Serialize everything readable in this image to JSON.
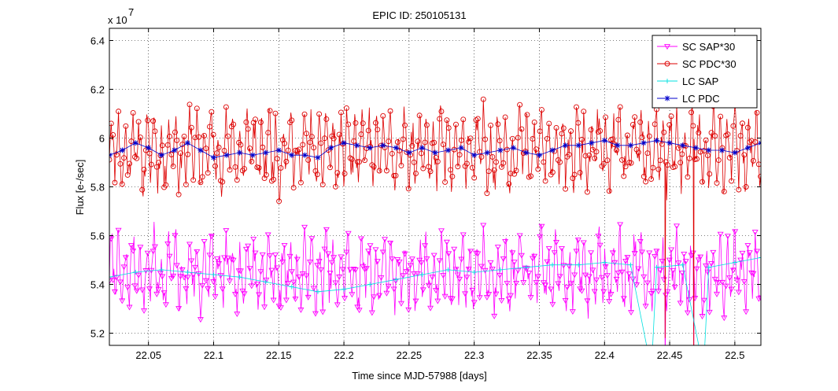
{
  "chart_data": {
    "type": "line",
    "title": "EPIC ID: 250105131",
    "xlabel": "Time since MJD-57988 [days]",
    "ylabel": "Flux [e-/sec]",
    "y_multiplier": "x 10",
    "y_exponent": "7",
    "xlim": [
      22.02,
      22.52
    ],
    "ylim": [
      5.15,
      6.45
    ],
    "x_ticks": [
      22.05,
      22.1,
      22.15,
      22.2,
      22.25,
      22.3,
      22.35,
      22.4,
      22.45,
      22.5
    ],
    "x_tick_labels": [
      "22.05",
      "22.1",
      "22.15",
      "22.2",
      "22.25",
      "22.3",
      "22.35",
      "22.4",
      "22.45",
      "22.5"
    ],
    "y_ticks": [
      5.2,
      5.4,
      5.6,
      5.8,
      6.0,
      6.2,
      6.4
    ],
    "y_tick_labels": [
      "5.2",
      "5.4",
      "5.6",
      "5.8",
      "6",
      "6.2",
      "6.4"
    ],
    "grid": true,
    "legend_position": "top-right",
    "legend_entries": [
      "SC SAP*30",
      "SC PDC*30",
      "LC SAP",
      "LC PDC"
    ],
    "colors": {
      "sc_sap": "#ff00ff",
      "sc_pdc": "#dd0000",
      "lc_sap": "#00e0e0",
      "lc_pdc": "#0000cc"
    },
    "series": [
      {
        "name": "SC SAP*30",
        "marker": "triangle-down",
        "generator": {
          "type": "oscillation",
          "x_start": 22.02,
          "x_end": 22.52,
          "x_step": 0.0007,
          "mean": 5.45,
          "amplitude": 0.1,
          "period": 0.0055,
          "noise": 0.07,
          "seed": 7,
          "dropouts": [
            {
              "x": 22.4465,
              "y": 5.05
            },
            {
              "x": 22.4685,
              "y": 5.05
            }
          ]
        }
      },
      {
        "name": "SC PDC*30",
        "marker": "circle",
        "generator": {
          "type": "oscillation",
          "x_start": 22.02,
          "x_end": 22.52,
          "x_step": 0.0007,
          "mean": 5.95,
          "amplitude": 0.11,
          "period": 0.0055,
          "noise": 0.075,
          "seed": 11,
          "dropouts": [
            {
              "x": 22.4465,
              "y": 5.18
            },
            {
              "x": 22.4685,
              "y": 5.05
            }
          ]
        }
      },
      {
        "name": "LC SAP",
        "marker": "plus",
        "x": [
          22.02,
          22.04,
          22.06,
          22.08,
          22.1,
          22.12,
          22.14,
          22.16,
          22.18,
          22.2,
          22.22,
          22.24,
          22.26,
          22.28,
          22.3,
          22.32,
          22.34,
          22.36,
          22.38,
          22.4,
          22.42,
          22.44,
          22.46,
          22.48,
          22.5,
          22.52
        ],
        "values": [
          5.43,
          5.45,
          5.46,
          5.45,
          5.44,
          5.43,
          5.41,
          5.39,
          5.37,
          5.38,
          5.4,
          5.42,
          5.44,
          5.46,
          5.45,
          5.46,
          5.47,
          5.48,
          5.48,
          5.49,
          5.48,
          5.47,
          5.48,
          5.47,
          5.49,
          5.51
        ],
        "dropouts": [
          {
            "x": 22.436,
            "y": 5.05
          },
          {
            "x": 22.476,
            "y": 5.05
          }
        ]
      },
      {
        "name": "LC PDC",
        "marker": "asterisk",
        "x": [
          22.02,
          22.03,
          22.04,
          22.05,
          22.06,
          22.07,
          22.08,
          22.09,
          22.1,
          22.11,
          22.12,
          22.13,
          22.14,
          22.15,
          22.16,
          22.17,
          22.18,
          22.19,
          22.2,
          22.21,
          22.22,
          22.23,
          22.24,
          22.25,
          22.26,
          22.27,
          22.28,
          22.29,
          22.3,
          22.31,
          22.32,
          22.33,
          22.34,
          22.35,
          22.36,
          22.37,
          22.38,
          22.39,
          22.4,
          22.41,
          22.42,
          22.43,
          22.44,
          22.45,
          22.46,
          22.47,
          22.48,
          22.49,
          22.5,
          22.51,
          22.52
        ],
        "values": [
          5.93,
          5.95,
          5.98,
          5.96,
          5.93,
          5.95,
          5.98,
          5.95,
          5.92,
          5.93,
          5.94,
          5.93,
          5.94,
          5.95,
          5.93,
          5.93,
          5.92,
          5.96,
          5.98,
          5.97,
          5.96,
          5.97,
          5.96,
          5.94,
          5.96,
          5.94,
          5.95,
          5.96,
          5.93,
          5.94,
          5.95,
          5.96,
          5.94,
          5.93,
          5.95,
          5.97,
          5.97,
          5.98,
          5.99,
          5.97,
          5.97,
          5.98,
          5.99,
          5.98,
          5.97,
          5.96,
          5.95,
          5.95,
          5.94,
          5.96,
          5.98
        ]
      }
    ]
  }
}
